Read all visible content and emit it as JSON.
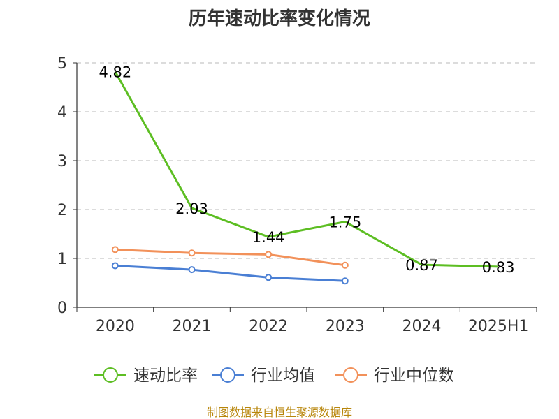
{
  "chart_data": {
    "type": "line",
    "title": "历年速动比率变化情况",
    "xlabel": "",
    "ylabel": "",
    "categories": [
      "2020",
      "2021",
      "2022",
      "2023",
      "2024",
      "2025H1"
    ],
    "ylim": [
      0,
      5
    ],
    "yticks": [
      0,
      1,
      2,
      3,
      4,
      5
    ],
    "grid": true,
    "legend_position": "bottom",
    "series": [
      {
        "name": "速动比率",
        "color": "#5dbe23",
        "values": [
          4.82,
          2.03,
          1.44,
          1.75,
          0.87,
          0.83
        ],
        "labels": [
          "4.82",
          "2.03",
          "1.44",
          "1.75",
          "0.87",
          "0.83"
        ]
      },
      {
        "name": "行业均值",
        "color": "#4a7fd4",
        "values": [
          0.85,
          0.77,
          0.61,
          0.54,
          null,
          null
        ]
      },
      {
        "name": "行业中位数",
        "color": "#f2915a",
        "values": [
          1.18,
          1.11,
          1.08,
          0.86,
          null,
          null
        ]
      }
    ]
  },
  "source_note": "制图数据来自恒生聚源数据库"
}
